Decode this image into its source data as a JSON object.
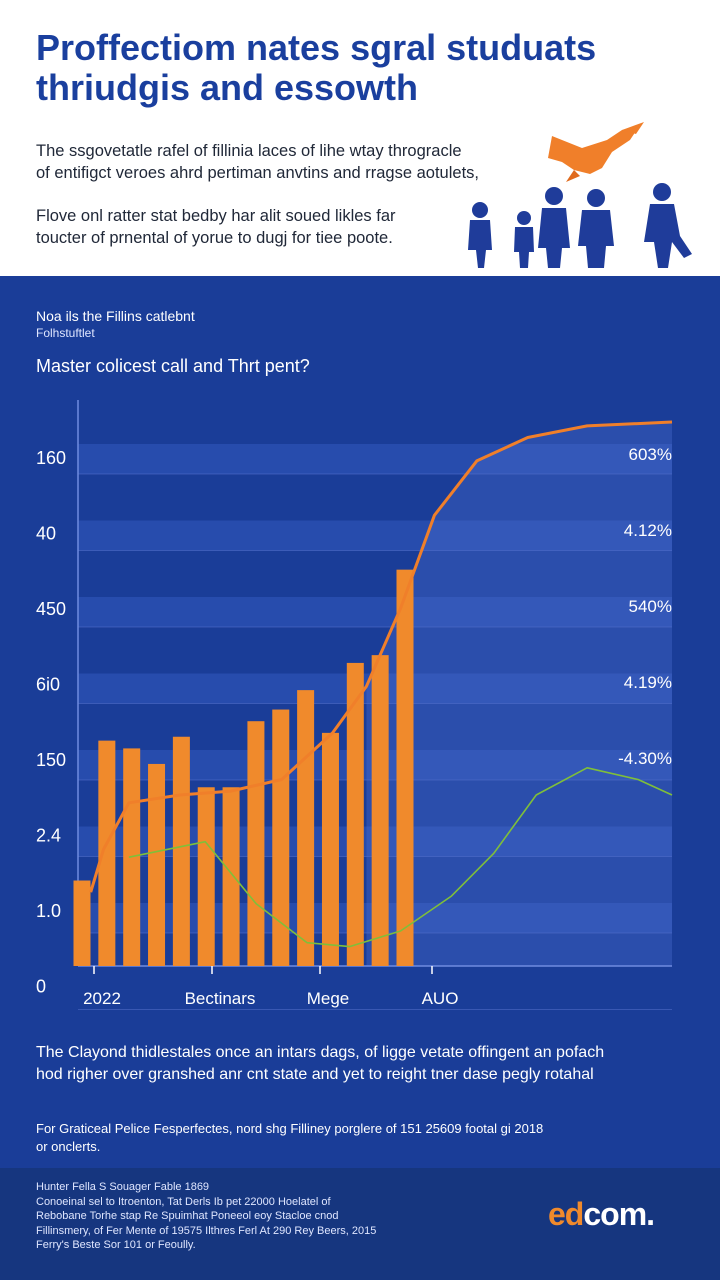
{
  "header": {
    "title_line1": "Proffectiom nates sgral studuats",
    "title_line2": "thriudgis and essowth",
    "intro_line1": "The ssgovetatle rafel of fillinia laces of lihe wtay throgracle",
    "intro_line2": "of entifigct veroes ahrd pertiman anvtins and rragse aotulets,",
    "intro2_line1": "Flove onl ratter stat bedby har alit soued likles far",
    "intro2_line2": "toucter of prnental of yorue to dugj for tiee poote."
  },
  "panel": {
    "subtitle": "Noa ils the Fillins catlebnt",
    "subtitle_small": "Folhstuftlet",
    "question": "Master colicest call and Thrt pent?"
  },
  "chart_data": {
    "type": "bar",
    "title": "Master colicest call and Thrt pent?",
    "y_tick_labels": [
      "160",
      "40",
      "450",
      "6i0",
      "150",
      "2.4",
      "1.0",
      "0"
    ],
    "x_tick_labels": [
      "2022",
      "Bectinars",
      "Mege",
      "AUO"
    ],
    "right_labels": [
      "603%",
      "4.12%",
      "540%",
      "4.19%",
      "-4.30%"
    ],
    "ylim": [
      0,
      7
    ],
    "bars": [
      1.1,
      2.9,
      2.8,
      2.6,
      2.95,
      2.3,
      2.3,
      3.15,
      3.3,
      3.55,
      3.0,
      3.9,
      4.0,
      5.1
    ],
    "series": [
      {
        "name": "orange-curve",
        "color": "#f07f2a",
        "x": [
          0.15,
          0.3,
          0.6,
          1.2,
          1.8,
          2.4,
          3.0,
          3.4,
          3.8,
          4.2,
          4.7,
          5.3,
          6.0,
          7.0
        ],
        "values": [
          0.95,
          1.5,
          2.1,
          2.2,
          2.25,
          2.4,
          3.0,
          3.6,
          4.6,
          5.8,
          6.5,
          6.8,
          6.95,
          7.0
        ]
      },
      {
        "name": "green-curve",
        "color": "#7fbf3a",
        "x": [
          0.6,
          1.5,
          2.1,
          2.7,
          3.2,
          3.8,
          4.4,
          4.9,
          5.4,
          6.0,
          6.6,
          7.0
        ],
        "values": [
          1.4,
          1.6,
          0.8,
          0.3,
          0.25,
          0.45,
          0.9,
          1.45,
          2.2,
          2.55,
          2.4,
          2.2
        ]
      }
    ],
    "colors": {
      "bar": "#f08a2c",
      "band": "#2a4fb0",
      "band_light": "#5874cf"
    }
  },
  "bottom": {
    "line1": "The Clayond thidlestales once an intars dags, of ligge vetate offingent an pofach",
    "line2": "hod righer over granshed anr cnt state and yet to reight tner dase pegly rotahal",
    "note_line1": "For Graticeal Pelice Fesperfectes, nord shg Filliney porglere of 151 25609 footal gi 2018",
    "note_line2": "or onclerts."
  },
  "footer": {
    "lines": [
      "Hunter Fella S Souager Fable 1869",
      "Conoeinal sel to Itroenton, Tat Derls Ib pet 22000 Hoelatel of",
      "Rebobane Torhe stap Re Spuimhat Poneeol eoy Stacloe cnod",
      "Fillinsmery, of Fer Mente of 19575 Ilthres Ferl At 290 Rey Beers, 2015",
      "Ferry's Beste Sor 101 or Feoully."
    ],
    "logo_part1": "ed",
    "logo_part2": "com."
  }
}
